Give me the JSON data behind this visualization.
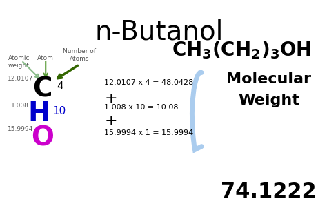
{
  "title": "n-Butanol",
  "formula": "CH₃(CH₂)₃OH",
  "bg_color": "#ffffff",
  "title_fontsize": 28,
  "formula_fontsize": 22,
  "atomic_weight_label": "Atomic\nweight",
  "atom_label": "Atom",
  "num_atoms_label": "Number of\nAtoms",
  "element_C": "C",
  "element_H": "H",
  "element_O": "O",
  "sub_C": "4",
  "sub_H": "10",
  "aw_C": "12.0107",
  "aw_H": "1.008",
  "aw_O": "15.9994",
  "calc_C": "12.0107 x 4 = 48.0428",
  "calc_H": "1.008 x 10 = 10.08",
  "calc_O": "15.9994 x 1 = 15.9994",
  "mw_label1": "Molecular",
  "mw_label2": "Weight",
  "mw_value": "74.1222",
  "color_C": "#000000",
  "color_H": "#0000cc",
  "color_O": "#cc00cc",
  "color_arrow_light": "#88bb88",
  "color_arrow_dark": "#336600",
  "color_bracket": "#aaccee",
  "color_label": "#000000",
  "color_calc": "#000000",
  "color_mw": "#000000",
  "color_aw": "#555555",
  "color_plus": "#000000"
}
